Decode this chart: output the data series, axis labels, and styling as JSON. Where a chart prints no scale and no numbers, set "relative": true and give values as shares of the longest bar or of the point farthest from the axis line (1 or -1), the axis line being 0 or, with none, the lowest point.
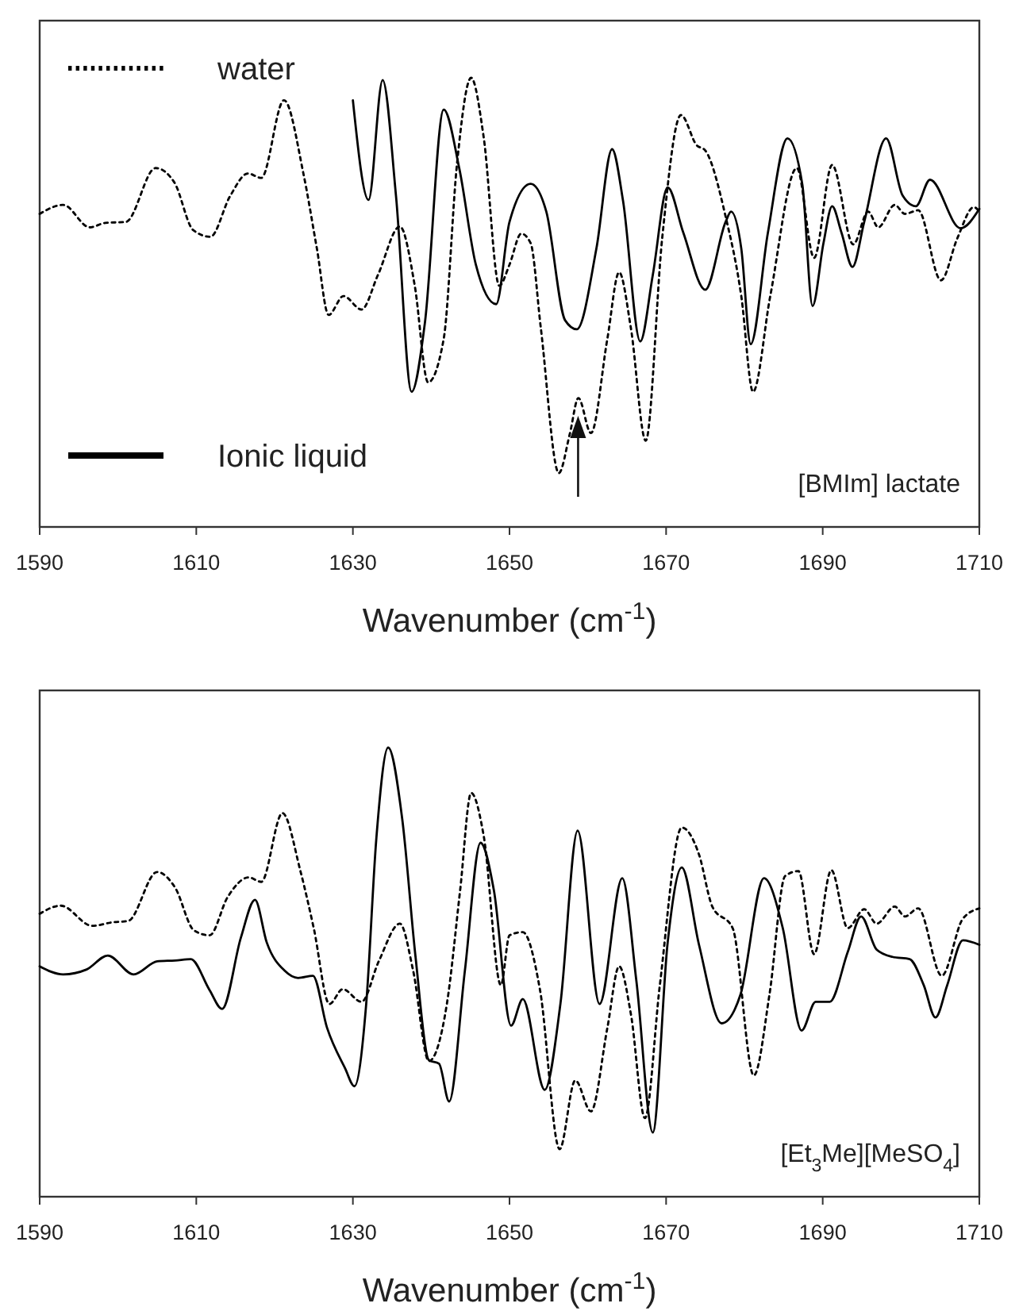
{
  "chart_data": [
    {
      "type": "line",
      "relative": true,
      "xlabel": "Wavenumber (cm$^{-1}$)",
      "xlim": [
        1590,
        1710
      ],
      "xticks": [
        1590,
        1610,
        1630,
        1650,
        1670,
        1690,
        1710
      ],
      "tick_labels": "x",
      "legend": "left",
      "annotations": [
        "[BMIm] lactate"
      ],
      "series": [
        {
          "name": "water",
          "color": "#000000",
          "line_style": "dotted",
          "x": [
            1590,
            1593,
            1596.4,
            1598.4,
            1601,
            1604.8,
            1607.2,
            1609.6,
            1611.8,
            1614.3,
            1616.6,
            1618.3,
            1621.2,
            1623.7,
            1625.4,
            1626.9,
            1628.8,
            1631.1,
            1633.2,
            1636,
            1637.9,
            1639.6,
            1641.6,
            1643.3,
            1645.1,
            1646.7,
            1648.7,
            1650,
            1651.5,
            1652.7,
            1654,
            1656.3,
            1657.7,
            1658.8,
            1660.4,
            1662.5,
            1664,
            1665.5,
            1667.4,
            1669.5,
            1671.9,
            1673.9,
            1675,
            1677.6,
            1679.6,
            1681.1,
            1683.3,
            1686.7,
            1688.9,
            1691.2,
            1693.9,
            1695.8,
            1697.1,
            1699.2,
            1700.5,
            1702.2,
            1705.1,
            1707.2,
            1709.3,
            1710
          ],
          "values": [
            0.697,
            0.717,
            0.667,
            0.677,
            0.679,
            0.799,
            0.767,
            0.661,
            0.646,
            0.736,
            0.787,
            0.777,
            0.95,
            0.785,
            0.62,
            0.472,
            0.514,
            0.484,
            0.561,
            0.669,
            0.537,
            0.322,
            0.419,
            0.809,
            1.0,
            0.868,
            0.537,
            0.584,
            0.653,
            0.632,
            0.443,
            0.12,
            0.207,
            0.287,
            0.209,
            0.419,
            0.567,
            0.443,
            0.192,
            0.643,
            0.917,
            0.85,
            0.838,
            0.691,
            0.514,
            0.301,
            0.514,
            0.799,
            0.599,
            0.806,
            0.629,
            0.702,
            0.667,
            0.717,
            0.697,
            0.705,
            0.549,
            0.643,
            0.712,
            0.702
          ]
        },
        {
          "name": "Ionic liquid",
          "color": "#000000",
          "line_style": "solid",
          "x": [
            1630,
            1632,
            1633.8,
            1635.5,
            1637.5,
            1639.2,
            1641.6,
            1643.6,
            1645.7,
            1648.3,
            1650,
            1652.7,
            1654.7,
            1657.1,
            1658.6,
            1661.1,
            1663.1,
            1664.5,
            1666.7,
            1668.3,
            1670.2,
            1672.2,
            1675,
            1677.6,
            1678.3,
            1679.6,
            1680.8,
            1683,
            1685.5,
            1687.4,
            1688.7,
            1690.1,
            1691.2,
            1692.4,
            1693.8,
            1695.3,
            1698.1,
            1700.2,
            1701.9,
            1703.7,
            1707.6,
            1710
          ],
          "values": [
            0.95,
            0.728,
            0.995,
            0.738,
            0.301,
            0.455,
            0.929,
            0.797,
            0.584,
            0.496,
            0.679,
            0.764,
            0.702,
            0.46,
            0.44,
            0.62,
            0.841,
            0.726,
            0.413,
            0.561,
            0.756,
            0.655,
            0.528,
            0.679,
            0.702,
            0.62,
            0.407,
            0.655,
            0.865,
            0.762,
            0.492,
            0.632,
            0.714,
            0.655,
            0.579,
            0.679,
            0.865,
            0.738,
            0.714,
            0.773,
            0.665,
            0.708
          ]
        }
      ]
    },
    {
      "type": "line",
      "relative": true,
      "xlabel": "Wavenumber (cm$^{-1}$)",
      "xlim": [
        1590,
        1710
      ],
      "xticks": [
        1590,
        1610,
        1630,
        1650,
        1670,
        1690,
        1710
      ],
      "tick_labels": "x",
      "annotations": [
        "[Et$_{3}$Me][MeSO$_{4}$]"
      ],
      "series": [
        {
          "color": "#000000",
          "line_style": "dotted",
          "x": [
            1590,
            1592.7,
            1596.7,
            1599.3,
            1601.3,
            1605,
            1607.3,
            1609.7,
            1611.7,
            1614,
            1616.7,
            1618.3,
            1621,
            1623.3,
            1625,
            1627,
            1628.7,
            1631.1,
            1633.3,
            1636,
            1637.7,
            1639.7,
            1642,
            1643.7,
            1645.1,
            1646.7,
            1648.9,
            1650,
            1651.7,
            1653.9,
            1656.4,
            1658.4,
            1660.4,
            1662.5,
            1664,
            1665.5,
            1667.3,
            1669.2,
            1672,
            1674.2,
            1675.9,
            1678.5,
            1681.2,
            1683.2,
            1685.2,
            1686.9,
            1688.9,
            1691.1,
            1693.2,
            1695.3,
            1696.9,
            1699.2,
            1700.5,
            1702.2,
            1705.2,
            1707.9,
            1710
          ],
          "values": [
            0.63,
            0.648,
            0.603,
            0.611,
            0.614,
            0.723,
            0.688,
            0.593,
            0.582,
            0.667,
            0.711,
            0.701,
            0.854,
            0.725,
            0.598,
            0.429,
            0.462,
            0.434,
            0.524,
            0.608,
            0.503,
            0.302,
            0.429,
            0.683,
            0.899,
            0.804,
            0.471,
            0.582,
            0.589,
            0.46,
            0.106,
            0.259,
            0.19,
            0.376,
            0.513,
            0.407,
            0.175,
            0.471,
            0.822,
            0.762,
            0.646,
            0.598,
            0.27,
            0.45,
            0.714,
            0.725,
            0.54,
            0.727,
            0.598,
            0.64,
            0.608,
            0.646,
            0.624,
            0.642,
            0.492,
            0.619,
            0.642
          ]
        },
        {
          "color": "#000000",
          "line_style": "solid",
          "x": [
            1590,
            1593,
            1596,
            1598.7,
            1602,
            1605,
            1607.3,
            1609.3,
            1611.7,
            1613.3,
            1615.7,
            1617.5,
            1619,
            1621.3,
            1623,
            1624.9,
            1626.7,
            1629,
            1630.2,
            1631.7,
            1633,
            1634.5,
            1636.3,
            1638,
            1639.7,
            1641,
            1642.3,
            1644.3,
            1646.3,
            1648,
            1650.2,
            1651.7,
            1654.5,
            1656.5,
            1658.7,
            1661.5,
            1664.4,
            1666.2,
            1668.3,
            1670.2,
            1672,
            1674.2,
            1677.1,
            1679.5,
            1682.5,
            1684.9,
            1687.3,
            1689.1,
            1690.9,
            1693.2,
            1694.9,
            1696.9,
            1698.9,
            1701.1,
            1702.9,
            1704.4,
            1705.9,
            1707.9,
            1710
          ],
          "values": [
            0.513,
            0.495,
            0.506,
            0.537,
            0.495,
            0.524,
            0.526,
            0.529,
            0.46,
            0.418,
            0.577,
            0.661,
            0.566,
            0.503,
            0.487,
            0.492,
            0.376,
            0.286,
            0.246,
            0.429,
            0.799,
            1.0,
            0.841,
            0.534,
            0.304,
            0.296,
            0.212,
            0.503,
            0.788,
            0.683,
            0.381,
            0.44,
            0.238,
            0.429,
            0.815,
            0.429,
            0.709,
            0.481,
            0.143,
            0.566,
            0.733,
            0.561,
            0.386,
            0.45,
            0.709,
            0.598,
            0.37,
            0.434,
            0.434,
            0.545,
            0.624,
            0.55,
            0.534,
            0.529,
            0.471,
            0.399,
            0.471,
            0.571,
            0.561
          ]
        }
      ]
    }
  ]
}
